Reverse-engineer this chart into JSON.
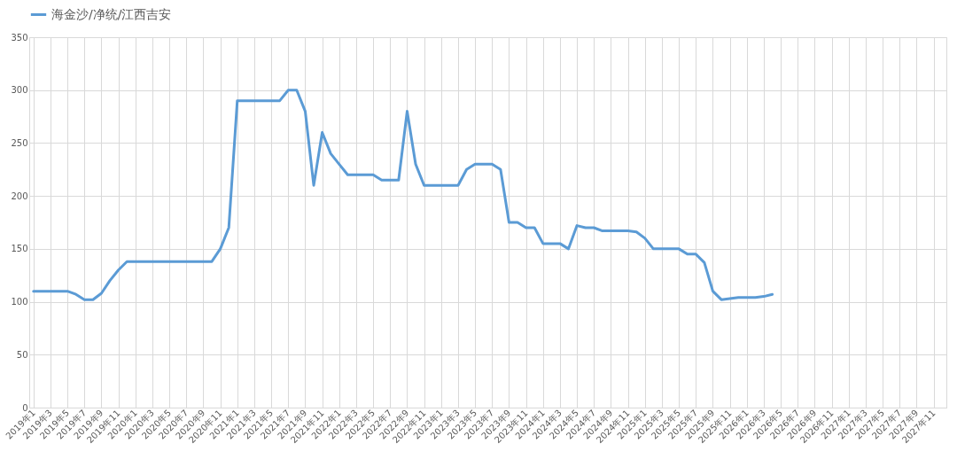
{
  "chart_data": {
    "type": "line",
    "categories": [
      "2019年1",
      null,
      "2019年3",
      null,
      "2019年5",
      null,
      "2019年7",
      null,
      "2019年9",
      null,
      "2019年11",
      null,
      "2020年1",
      null,
      "2020年3",
      null,
      "2020年5",
      null,
      "2020年7",
      null,
      "2020年9",
      null,
      "2020年11",
      null,
      "2021年1",
      null,
      "2021年3",
      null,
      "2021年5",
      null,
      "2021年7",
      null,
      "2021年9",
      null,
      "2021年11",
      null,
      "2022年1",
      null,
      "2022年3",
      null,
      "2022年5",
      null,
      "2022年7",
      null,
      "2022年9",
      null,
      "2022年11",
      null,
      "2023年1",
      null,
      "2023年3",
      null,
      "2023年5",
      null,
      "2023年7",
      null,
      "2023年9",
      null,
      "2023年11",
      null,
      "2024年1",
      null,
      "2024年3",
      null,
      "2024年5",
      null,
      "2024年7",
      null,
      "2024年9",
      null,
      "2024年11",
      null,
      "2025年1",
      null,
      "2025年3",
      null,
      "2025年5",
      null,
      "2025年7",
      null,
      "2025年9",
      null,
      "2025年11",
      null,
      "2026年1",
      null,
      "2026年3",
      null,
      "2026年5",
      null,
      "2026年7",
      null,
      "2026年9",
      null,
      "2026年11",
      null,
      "2027年1",
      null,
      "2027年3",
      null,
      "2027年5",
      null,
      "2027年7",
      null,
      "2027年9",
      null,
      "2027年11",
      null
    ],
    "series": [
      {
        "name": "海金沙/净统/江西吉安",
        "color": "#5b9bd5",
        "values": [
          110,
          110,
          110,
          110,
          110,
          107,
          102,
          102,
          108,
          120,
          130,
          138,
          138,
          138,
          138,
          138,
          138,
          138,
          138,
          138,
          138,
          138,
          150,
          170,
          290,
          290,
          290,
          290,
          290,
          290,
          300,
          300,
          280,
          210,
          260,
          240,
          230,
          220,
          220,
          220,
          220,
          215,
          215,
          215,
          280,
          230,
          210,
          210,
          210,
          210,
          210,
          225,
          230,
          230,
          230,
          225,
          175,
          175,
          170,
          170,
          155,
          155,
          155,
          150,
          172,
          170,
          170,
          167,
          167,
          167,
          167,
          166,
          160,
          150,
          150,
          150,
          150,
          145,
          145,
          137,
          110,
          102,
          103,
          104,
          104,
          104,
          105,
          107,
          null,
          null,
          null,
          null,
          null,
          null,
          null,
          null,
          null,
          null,
          null,
          null,
          null,
          null,
          null,
          null,
          null,
          null,
          null,
          null
        ]
      }
    ],
    "ylim": [
      0,
      350
    ],
    "yticks": [
      0,
      50,
      100,
      150,
      200,
      250,
      300,
      350
    ],
    "grid": true,
    "legend": "top",
    "marker": "none",
    "line_style": "solid"
  }
}
